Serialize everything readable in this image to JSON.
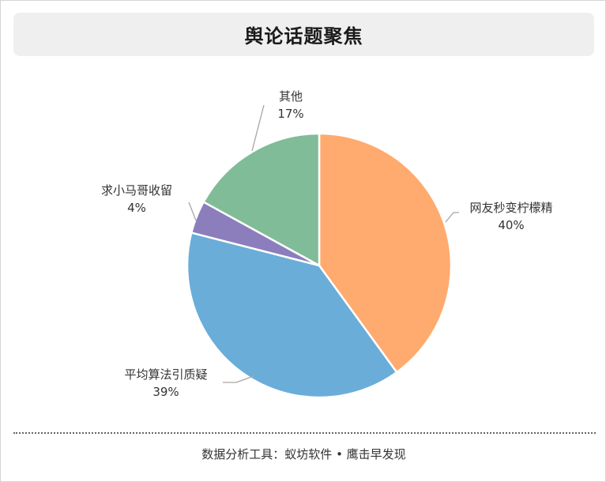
{
  "title": "舆论话题聚焦",
  "footer": "数据分析工具：蚁坊软件 • 鹰击早发现",
  "chart_data": {
    "type": "pie",
    "slices": [
      {
        "label": "网友秒变柠檬精",
        "value": 40,
        "value_text": "40%",
        "color": "#FFAA6E"
      },
      {
        "label": "平均算法引质疑",
        "value": 39,
        "value_text": "39%",
        "color": "#6AADD9"
      },
      {
        "label": "求小马哥收留",
        "value": 4,
        "value_text": "4%",
        "color": "#8C7EBC"
      },
      {
        "label": "其他",
        "value": 17,
        "value_text": "17%",
        "color": "#80BC98"
      }
    ]
  }
}
